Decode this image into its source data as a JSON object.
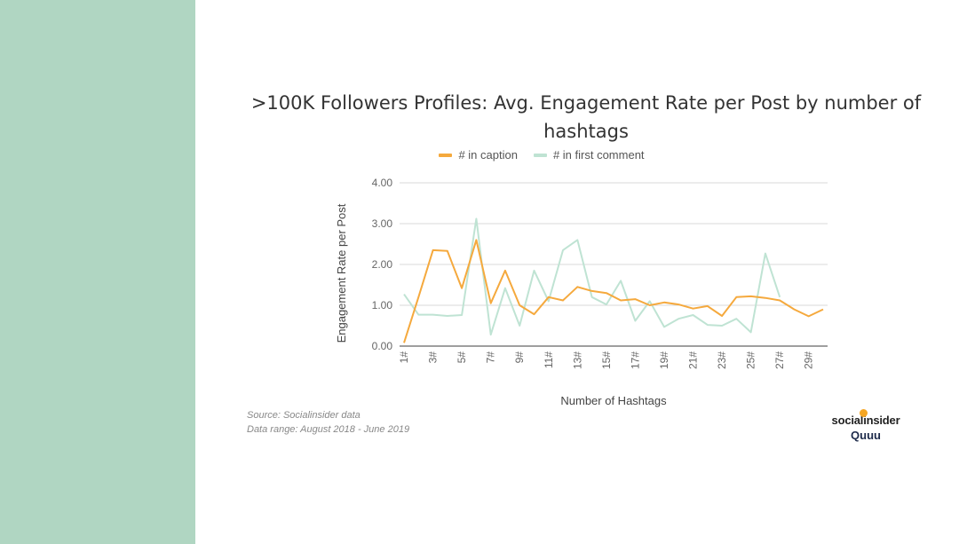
{
  "colors": {
    "sidebar": "#b0d6c2",
    "caption_series": "#f5a93d",
    "comment_series": "#bfe3d3",
    "grid": "#d9d9d9",
    "logo_accent": "#f5a623"
  },
  "source_lines": [
    "Source: Socialinsider data",
    "Data range: August 2018 - June 2019"
  ],
  "logos": {
    "main": "socialinsider",
    "secondary": "Quuu"
  },
  "chart_data": {
    "type": "line",
    "title": ">100K Followers Profiles: Avg. Engagement Rate per Post by number of hashtags",
    "xlabel": "Number of Hashtags",
    "ylabel": "Engagement Rate per Post",
    "ylim": [
      0,
      4
    ],
    "yticks": [
      "0.00",
      "1.00",
      "2.00",
      "3.00",
      "4.00"
    ],
    "grid": true,
    "legend_position": "top",
    "categories": [
      "1#",
      "2#",
      "3#",
      "4#",
      "5#",
      "6#",
      "7#",
      "8#",
      "9#",
      "10#",
      "11#",
      "12#",
      "13#",
      "14#",
      "15#",
      "16#",
      "17#",
      "18#",
      "19#",
      "20#",
      "21#",
      "22#",
      "23#",
      "24#",
      "25#",
      "26#",
      "27#",
      "28#",
      "29#",
      "30#"
    ],
    "tick_labels": [
      "1#",
      "3#",
      "5#",
      "7#",
      "9#",
      "11#",
      "13#",
      "15#",
      "17#",
      "19#",
      "21#",
      "23#",
      "25#",
      "27#",
      "29#"
    ],
    "series": [
      {
        "name": "# in caption",
        "color": "#f5a93d",
        "values": [
          0.08,
          1.2,
          2.35,
          2.33,
          1.42,
          2.6,
          1.05,
          1.85,
          1.0,
          0.78,
          1.2,
          1.12,
          1.45,
          1.35,
          1.3,
          1.12,
          1.15,
          1.0,
          1.07,
          1.02,
          0.92,
          0.98,
          0.74,
          1.2,
          1.22,
          1.18,
          1.12,
          0.9,
          0.73,
          0.9
        ]
      },
      {
        "name": "# in first comment",
        "color": "#bfe3d3",
        "values": [
          1.27,
          0.77,
          0.77,
          0.74,
          0.76,
          3.12,
          0.28,
          1.42,
          0.5,
          1.85,
          1.1,
          2.35,
          2.6,
          1.2,
          1.02,
          1.6,
          0.62,
          1.1,
          0.47,
          0.67,
          0.76,
          0.52,
          0.5,
          0.67,
          0.34,
          2.27,
          1.2,
          null,
          null,
          null
        ]
      }
    ]
  }
}
